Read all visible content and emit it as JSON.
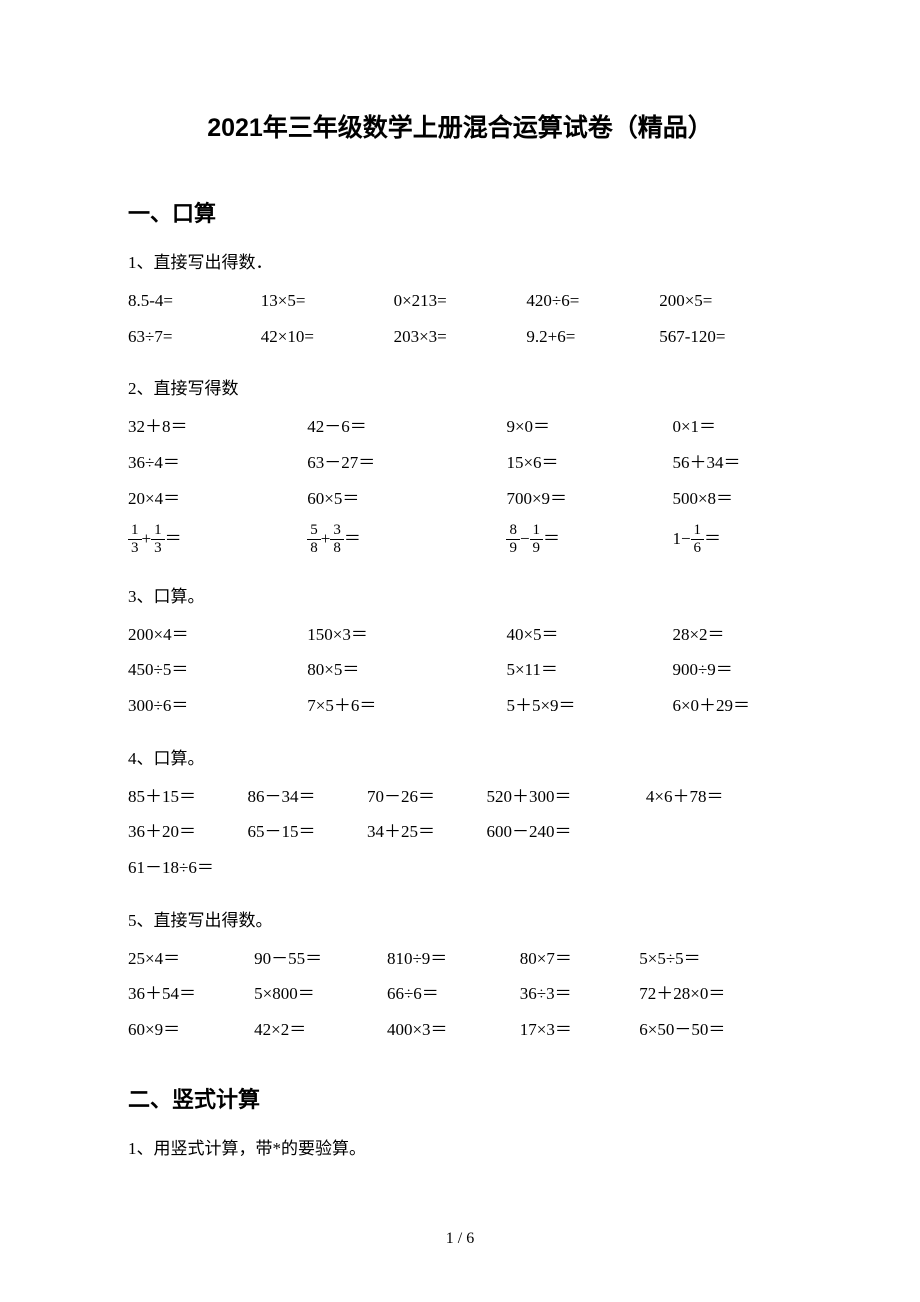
{
  "title": "2021年三年级数学上册混合运算试卷（精品）",
  "section1": {
    "heading": "一、口算",
    "q1_label": "1、直接写出得数．",
    "q1_rows": [
      [
        "8.5-4=",
        "13×5=",
        "0×213=",
        "420÷6=",
        "200×5="
      ],
      [
        "63÷7=",
        "42×10=",
        "203×3=",
        "9.2+6=",
        "567-120="
      ]
    ],
    "q2_label": "2、直接写得数",
    "q2_rows": [
      [
        "32＋8＝",
        "42－6＝",
        "9×0＝",
        "0×1＝"
      ],
      [
        "36÷4＝",
        "63－27＝",
        "15×6＝",
        "56＋34＝"
      ],
      [
        "20×4＝",
        "60×5＝",
        "700×9＝",
        "500×8＝"
      ]
    ],
    "q2_frac_row": [
      {
        "a_num": "1",
        "a_den": "3",
        "op": "+",
        "b_num": "1",
        "b_den": "3"
      },
      {
        "a_num": "5",
        "a_den": "8",
        "op": "+",
        "b_num": "3",
        "b_den": "8"
      },
      {
        "a_num": "8",
        "a_den": "9",
        "op": "−",
        "b_num": "1",
        "b_den": "9"
      },
      {
        "one_minus": true,
        "b_num": "1",
        "b_den": "6"
      }
    ],
    "q3_label": "3、口算。",
    "q3_rows": [
      [
        "200×4＝",
        "150×3＝",
        "40×5＝",
        "28×2＝"
      ],
      [
        "450÷5＝",
        "80×5＝",
        "5×11＝",
        "900÷9＝"
      ],
      [
        "300÷6＝",
        "7×5＋6＝",
        "5＋5×9＝",
        "6×0＋29＝"
      ]
    ],
    "q4_label": "4、口算。",
    "q4_rows": [
      [
        "85＋15＝",
        "86－34＝",
        "70－26＝",
        "520＋300＝",
        "4×6＋78＝"
      ],
      [
        "36＋20＝",
        "65－15＝",
        "34＋25＝",
        "600－240＝",
        ""
      ]
    ],
    "q4_last": "61－18÷6＝",
    "q5_label": "5、直接写出得数。",
    "q5_rows": [
      [
        "25×4＝",
        "90－55＝",
        "810÷9＝",
        "80×7＝",
        "5×5÷5＝"
      ],
      [
        "36＋54＝",
        "5×800＝",
        "66÷6＝",
        "36÷3＝",
        "72＋28×0＝"
      ],
      [
        "60×9＝",
        "42×2＝",
        "400×3＝",
        "17×3＝",
        "6×50－50＝"
      ]
    ]
  },
  "section2": {
    "heading": "二、竖式计算",
    "q1_label": "1、用竖式计算，带*的要验算。"
  },
  "footer": "1 / 6"
}
